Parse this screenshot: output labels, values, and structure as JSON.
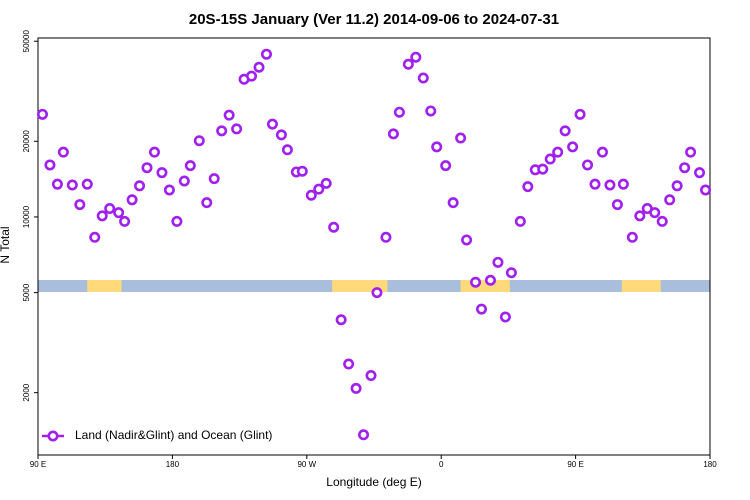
{
  "chart_data": {
    "type": "scatter",
    "title": "20S-15S January (Ver 11.2)   2014-09-06 to 2024-07-31",
    "x_label": "Longitude (deg E)",
    "y_label": "N Total",
    "xlim": [
      90,
      540
    ],
    "xticks": [
      {
        "value": 90,
        "label": "90 E"
      },
      {
        "value": 180,
        "label": "180"
      },
      {
        "value": 270,
        "label": "90 W"
      },
      {
        "value": 360,
        "label": "0"
      },
      {
        "value": 450,
        "label": "90 E"
      },
      {
        "value": 540,
        "label": "180"
      }
    ],
    "ylim": [
      1130,
      51500
    ],
    "yticks": [
      2000,
      5000,
      10000,
      20000,
      50000
    ],
    "log_y": true,
    "legend": "bottom-left",
    "ocean_color": "#a8bedc",
    "land_color": "#ffd97a",
    "land_segments": [
      [
        123,
        146
      ],
      [
        287,
        324
      ],
      [
        373,
        406
      ],
      [
        481,
        507
      ]
    ],
    "series": [
      {
        "name": "Land (Nadir&Glint) and Ocean (Glint)",
        "color": "#a020f0",
        "x": [
          93,
          98,
          103,
          107,
          113,
          118,
          123,
          128,
          133,
          138,
          144,
          148,
          153,
          158,
          163,
          168,
          173,
          178,
          183,
          188,
          192,
          198,
          203,
          208,
          213,
          218,
          223,
          228,
          233,
          238,
          243,
          247,
          253,
          257,
          263,
          267,
          273,
          278,
          283,
          288,
          293,
          298,
          303,
          308,
          313,
          317,
          323,
          328,
          332,
          338,
          343,
          348,
          353,
          357,
          363,
          368,
          373,
          377,
          383,
          387,
          393,
          398,
          403,
          407,
          413,
          418,
          423,
          428,
          433,
          438,
          443,
          448,
          453,
          458,
          463,
          468,
          473,
          478,
          482,
          488,
          493,
          498,
          503,
          508,
          513,
          518,
          523,
          527,
          533,
          537
        ],
        "values": [
          25600,
          16100,
          13500,
          18100,
          13400,
          11200,
          13500,
          8300,
          10100,
          10800,
          10400,
          9600,
          11700,
          13300,
          15700,
          18100,
          15000,
          12800,
          9600,
          13900,
          16000,
          20100,
          11400,
          14200,
          22000,
          25400,
          22400,
          35300,
          36300,
          39400,
          44400,
          23400,
          21200,
          18500,
          15100,
          15200,
          12200,
          12900,
          13600,
          9100,
          3900,
          2600,
          2080,
          1360,
          2340,
          5000,
          8300,
          21400,
          26100,
          40500,
          43200,
          35700,
          26400,
          19000,
          16000,
          11400,
          20600,
          8100,
          5500,
          4300,
          5600,
          6600,
          4000,
          6000,
          9600,
          13200,
          15400,
          15500,
          17000,
          18100,
          22000,
          19000,
          25600,
          16100,
          13500,
          18100,
          13400,
          11200,
          13500,
          8300,
          10100,
          10800,
          10400,
          9600,
          11700,
          13300,
          15700,
          18100,
          15000,
          12800
        ]
      }
    ]
  }
}
